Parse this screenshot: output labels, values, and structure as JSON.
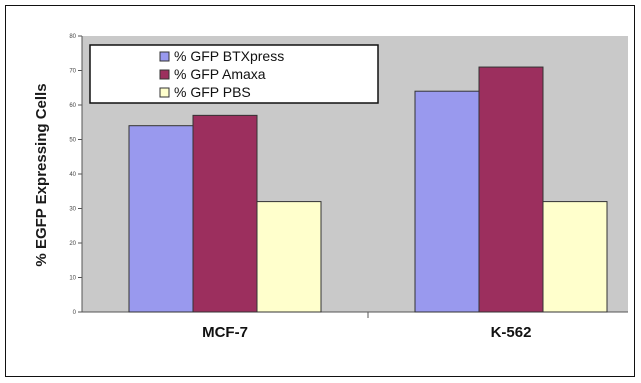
{
  "chart_data": {
    "type": "bar",
    "title": "",
    "xlabel": "",
    "ylabel": "% EGFP Expressing Cells",
    "categories": [
      "MCF-7",
      "K-562"
    ],
    "series": [
      {
        "name": "% GFP BTXpress",
        "values": [
          54,
          64
        ]
      },
      {
        "name": "% GFP Amaxa",
        "values": [
          57,
          71
        ]
      },
      {
        "name": "% GFP PBS",
        "values": [
          32,
          32
        ]
      }
    ],
    "ylim": [
      0,
      80
    ],
    "yticks": [
      "0",
      "10",
      "20",
      "30",
      "40",
      "50",
      "60",
      "70",
      "80"
    ],
    "legend_position": "top-left",
    "grid": false,
    "colors": {
      "series": [
        "#9999ee",
        "#9c2f5e",
        "#ffffcc"
      ],
      "plot_background": "#c9c9c9",
      "bar_stroke": "#333333"
    }
  }
}
